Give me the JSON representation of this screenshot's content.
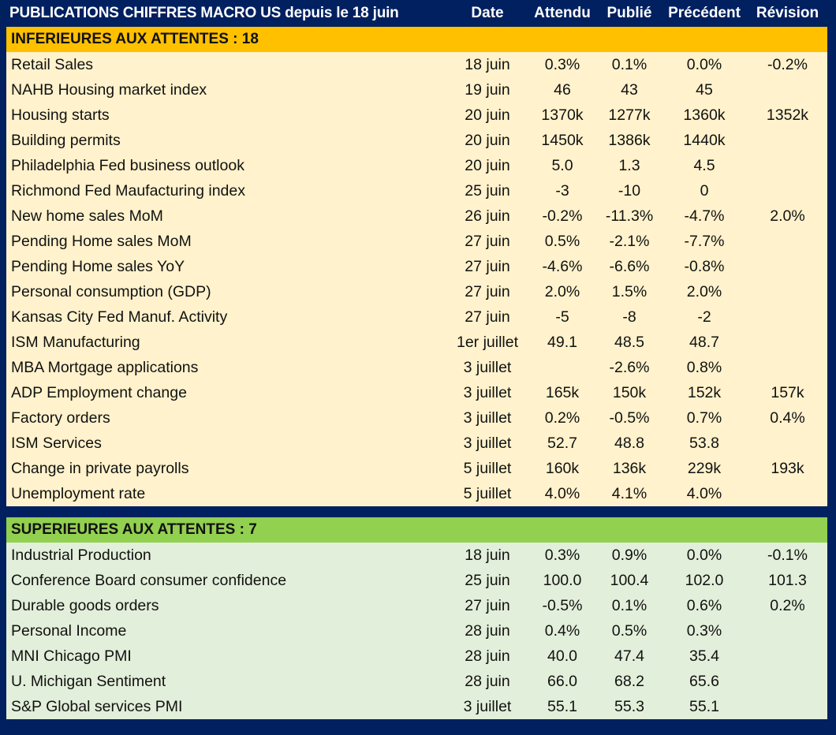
{
  "header": {
    "title": "PUBLICATIONS CHIFFRES MACRO US depuis le 18 juin",
    "columns": {
      "date": "Date",
      "expected": "Attendu",
      "published": "Publié",
      "previous": "Précédent",
      "revision": "Révision"
    }
  },
  "colors": {
    "navy": "#002060",
    "below_band": "#ffc000",
    "below_rows": "#fff2cc",
    "above_band": "#92d050",
    "above_rows": "#e2efda"
  },
  "sections": [
    {
      "title": "INFERIEURES AUX ATTENTES : 18",
      "rows": [
        {
          "name": "Retail Sales",
          "date": "18 juin",
          "expected": "0.3%",
          "published": "0.1%",
          "previous": "0.0%",
          "revision": "-0.2%"
        },
        {
          "name": "NAHB Housing market index",
          "date": "19 juin",
          "expected": "46",
          "published": "43",
          "previous": "45",
          "revision": ""
        },
        {
          "name": "Housing starts",
          "date": "20 juin",
          "expected": "1370k",
          "published": "1277k",
          "previous": "1360k",
          "revision": "1352k"
        },
        {
          "name": "Building permits",
          "date": "20 juin",
          "expected": "1450k",
          "published": "1386k",
          "previous": "1440k",
          "revision": ""
        },
        {
          "name": "Philadelphia Fed business outlook",
          "date": "20 juin",
          "expected": "5.0",
          "published": "1.3",
          "previous": "4.5",
          "revision": ""
        },
        {
          "name": "Richmond Fed Maufacturing index",
          "date": "25 juin",
          "expected": "-3",
          "published": "-10",
          "previous": "0",
          "revision": ""
        },
        {
          "name": "New home sales MoM",
          "date": "26 juin",
          "expected": "-0.2%",
          "published": "-11.3%",
          "previous": "-4.7%",
          "revision": "2.0%"
        },
        {
          "name": "Pending Home sales MoM",
          "date": "27 juin",
          "expected": "0.5%",
          "published": "-2.1%",
          "previous": "-7.7%",
          "revision": ""
        },
        {
          "name": "Pending Home sales YoY",
          "date": "27 juin",
          "expected": "-4.6%",
          "published": "-6.6%",
          "previous": "-0.8%",
          "revision": ""
        },
        {
          "name": "Personal consumption (GDP)",
          "date": "27 juin",
          "expected": "2.0%",
          "published": "1.5%",
          "previous": "2.0%",
          "revision": ""
        },
        {
          "name": "Kansas City Fed Manuf. Activity",
          "date": "27 juin",
          "expected": "-5",
          "published": "-8",
          "previous": "-2",
          "revision": ""
        },
        {
          "name": "ISM Manufacturing",
          "date": "1er juillet",
          "expected": "49.1",
          "published": "48.5",
          "previous": "48.7",
          "revision": ""
        },
        {
          "name": "MBA Mortgage applications",
          "date": "3 juillet",
          "expected": "",
          "published": "-2.6%",
          "previous": "0.8%",
          "revision": ""
        },
        {
          "name": "ADP Employment change",
          "date": "3 juillet",
          "expected": "165k",
          "published": "150k",
          "previous": "152k",
          "revision": "157k"
        },
        {
          "name": "Factory orders",
          "date": "3 juillet",
          "expected": "0.2%",
          "published": "-0.5%",
          "previous": "0.7%",
          "revision": "0.4%"
        },
        {
          "name": "ISM Services",
          "date": "3 juillet",
          "expected": "52.7",
          "published": "48.8",
          "previous": "53.8",
          "revision": ""
        },
        {
          "name": "Change in private payrolls",
          "date": "5 juillet",
          "expected": "160k",
          "published": "136k",
          "previous": "229k",
          "revision": "193k"
        },
        {
          "name": "Unemployment rate",
          "date": "5 juillet",
          "expected": "4.0%",
          "published": "4.1%",
          "previous": "4.0%",
          "revision": ""
        }
      ]
    },
    {
      "title": "SUPERIEURES AUX ATTENTES : 7",
      "rows": [
        {
          "name": "Industrial Production",
          "date": "18 juin",
          "expected": "0.3%",
          "published": "0.9%",
          "previous": "0.0%",
          "revision": "-0.1%"
        },
        {
          "name": "Conference Board consumer confidence",
          "date": "25 juin",
          "expected": "100.0",
          "published": "100.4",
          "previous": "102.0",
          "revision": "101.3"
        },
        {
          "name": "Durable goods orders",
          "date": "27 juin",
          "expected": "-0.5%",
          "published": "0.1%",
          "previous": "0.6%",
          "revision": "0.2%"
        },
        {
          "name": "Personal Income",
          "date": "28 juin",
          "expected": "0.4%",
          "published": "0.5%",
          "previous": "0.3%",
          "revision": ""
        },
        {
          "name": "MNI Chicago PMI",
          "date": "28 juin",
          "expected": "40.0",
          "published": "47.4",
          "previous": "35.4",
          "revision": ""
        },
        {
          "name": "U. Michigan Sentiment",
          "date": "28 juin",
          "expected": "66.0",
          "published": "68.2",
          "previous": "65.6",
          "revision": ""
        },
        {
          "name": "S&P Global services PMI",
          "date": "3 juillet",
          "expected": "55.1",
          "published": "55.3",
          "previous": "55.1",
          "revision": ""
        }
      ]
    }
  ]
}
